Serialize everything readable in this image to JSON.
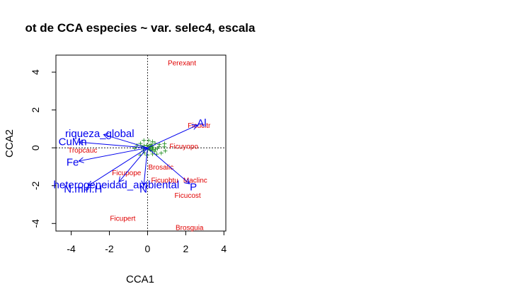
{
  "chart_data": {
    "type": "scatter",
    "title": "ot de CCA especies ~ var. selec4, escala",
    "xlabel": "CCA1",
    "ylabel": "CCA2",
    "xlim": [
      -4.8,
      4.1
    ],
    "ylim": [
      -4.4,
      4.9
    ],
    "xticks": [
      -4,
      -2,
      0,
      2,
      4
    ],
    "yticks": [
      -4,
      -2,
      0,
      2,
      4
    ],
    "zero_lines": true,
    "species_color": "#e00000",
    "env_color": "#0000ee",
    "site_color": "#1a8a1a",
    "species": [
      {
        "label": "Perexant",
        "x": 1.8,
        "y": 4.5
      },
      {
        "label": "Ficucitr",
        "x": 2.7,
        "y": 1.2
      },
      {
        "label": "Ficuyopo",
        "x": 1.9,
        "y": 0.1
      },
      {
        "label": "Tropcauc",
        "x": -3.4,
        "y": -0.1
      },
      {
        "label": "Ficuobtu",
        "x": 0.9,
        "y": -1.7
      },
      {
        "label": "Maclinc",
        "x": 2.5,
        "y": -1.7
      },
      {
        "label": "Ficucost",
        "x": 2.1,
        "y": -2.5
      },
      {
        "label": "Ficupert",
        "x": -1.3,
        "y": -3.7
      },
      {
        "label": "Brosguia",
        "x": 2.2,
        "y": -4.2
      },
      {
        "label": "Ficupope",
        "x": -1.1,
        "y": -1.3
      },
      {
        "label": "Brosalic",
        "x": 0.7,
        "y": -1.0
      }
    ],
    "env_vectors": [
      {
        "label": "Al",
        "x": 2.6,
        "y": 1.2
      },
      {
        "label": "riqueza_global",
        "x": -2.3,
        "y": 0.7
      },
      {
        "label": "CuMn",
        "x": -3.6,
        "y": 0.3
      },
      {
        "label": "Fe",
        "x": -3.6,
        "y": -0.7
      },
      {
        "label": "heterogeneidad_ambiental",
        "x": -1.5,
        "y": -1.8
      },
      {
        "label": "N.min.H",
        "x": -3.1,
        "y": -2.0
      },
      {
        "label": "N",
        "x": -0.2,
        "y": -2.0
      },
      {
        "label": "P",
        "x": 2.2,
        "y": -1.9
      }
    ]
  }
}
